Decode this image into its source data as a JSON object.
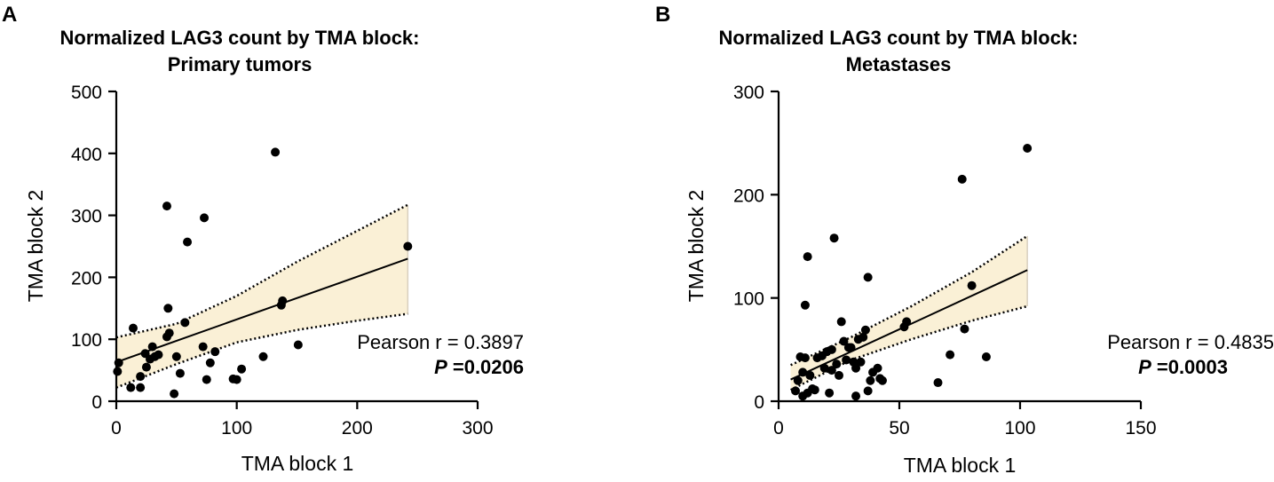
{
  "figure": {
    "panels": [
      "A",
      "B"
    ]
  },
  "chart_data": [
    {
      "type": "scatter",
      "panel": "A",
      "title": [
        "Normalized LAG3 count by TMA block:",
        "Primary tumors"
      ],
      "xlabel": "TMA block 1",
      "ylabel": "TMA block 2",
      "xlim": [
        0,
        300
      ],
      "ylim": [
        0,
        500
      ],
      "xticks": [
        "0",
        "100",
        "200",
        "300"
      ],
      "yticks": [
        "0",
        "100",
        "200",
        "300",
        "400",
        "500"
      ],
      "points": [
        [
          1,
          48
        ],
        [
          2,
          62
        ],
        [
          12,
          22
        ],
        [
          14,
          118
        ],
        [
          20,
          22
        ],
        [
          20,
          40
        ],
        [
          24,
          77
        ],
        [
          25,
          55
        ],
        [
          28,
          68
        ],
        [
          30,
          88
        ],
        [
          32,
          72
        ],
        [
          35,
          75
        ],
        [
          42,
          315
        ],
        [
          42,
          104
        ],
        [
          43,
          150
        ],
        [
          44,
          110
        ],
        [
          48,
          12
        ],
        [
          50,
          72
        ],
        [
          53,
          45
        ],
        [
          57,
          127
        ],
        [
          59,
          257
        ],
        [
          72,
          88
        ],
        [
          73,
          296
        ],
        [
          75,
          35
        ],
        [
          78,
          62
        ],
        [
          82,
          80
        ],
        [
          97,
          36
        ],
        [
          100,
          35
        ],
        [
          104,
          52
        ],
        [
          122,
          72
        ],
        [
          132,
          402
        ],
        [
          137,
          155
        ],
        [
          138,
          162
        ],
        [
          151,
          91
        ],
        [
          242,
          250
        ]
      ],
      "regression": {
        "x": [
          0,
          242
        ],
        "y": [
          63,
          230
        ]
      },
      "ci_upper": [
        [
          0,
          103
        ],
        [
          50,
          125
        ],
        [
          100,
          170
        ],
        [
          150,
          225
        ],
        [
          200,
          275
        ],
        [
          242,
          317
        ]
      ],
      "ci_lower": [
        [
          0,
          22
        ],
        [
          50,
          60
        ],
        [
          100,
          95
        ],
        [
          150,
          115
        ],
        [
          200,
          130
        ],
        [
          242,
          141
        ]
      ],
      "stats": {
        "r_text": "Pearson r = 0.3897",
        "p_label": "P",
        "p_value": " =0.0206"
      },
      "colors": {
        "band": "#faf0d6",
        "points": "#000000"
      }
    },
    {
      "type": "scatter",
      "panel": "B",
      "title": [
        "Normalized LAG3 count by TMA block:",
        "Metastases"
      ],
      "xlabel": "TMA block 1",
      "ylabel": "TMA block 2",
      "xlim": [
        0,
        150
      ],
      "ylim": [
        0,
        300
      ],
      "xticks": [
        "0",
        "50",
        "100",
        "150"
      ],
      "yticks": [
        "0",
        "100",
        "200",
        "300"
      ],
      "points": [
        [
          7,
          10
        ],
        [
          8,
          20
        ],
        [
          9,
          43
        ],
        [
          10,
          5
        ],
        [
          10,
          28
        ],
        [
          11,
          93
        ],
        [
          11,
          42
        ],
        [
          12,
          140
        ],
        [
          12,
          8
        ],
        [
          13,
          25
        ],
        [
          14,
          12
        ],
        [
          15,
          11
        ],
        [
          16,
          42
        ],
        [
          18,
          44
        ],
        [
          19,
          32
        ],
        [
          20,
          48
        ],
        [
          21,
          8
        ],
        [
          22,
          30
        ],
        [
          22,
          50
        ],
        [
          23,
          158
        ],
        [
          24,
          36
        ],
        [
          25,
          25
        ],
        [
          26,
          77
        ],
        [
          27,
          58
        ],
        [
          28,
          40
        ],
        [
          29,
          52
        ],
        [
          30,
          52
        ],
        [
          31,
          38
        ],
        [
          32,
          5
        ],
        [
          32,
          32
        ],
        [
          33,
          60
        ],
        [
          34,
          38
        ],
        [
          35,
          62
        ],
        [
          36,
          69
        ],
        [
          37,
          120
        ],
        [
          37,
          10
        ],
        [
          38,
          20
        ],
        [
          39,
          28
        ],
        [
          41,
          32
        ],
        [
          42,
          22
        ],
        [
          43,
          20
        ],
        [
          52,
          72
        ],
        [
          53,
          77
        ],
        [
          66,
          18
        ],
        [
          71,
          45
        ],
        [
          76,
          215
        ],
        [
          77,
          70
        ],
        [
          80,
          112
        ],
        [
          86,
          43
        ],
        [
          103,
          245
        ]
      ],
      "regression": {
        "x": [
          5,
          103
        ],
        "y": [
          21,
          127
        ]
      },
      "ci_upper": [
        [
          5,
          35
        ],
        [
          30,
          62
        ],
        [
          55,
          92
        ],
        [
          80,
          125
        ],
        [
          103,
          160
        ]
      ],
      "ci_lower": [
        [
          5,
          11
        ],
        [
          30,
          40
        ],
        [
          55,
          60
        ],
        [
          80,
          78
        ],
        [
          103,
          92
        ]
      ],
      "stats": {
        "r_text": "Pearson r = 0.4835",
        "p_label": "P",
        "p_value": " =0.0003"
      },
      "colors": {
        "band": "#faf0d6",
        "points": "#000000"
      }
    }
  ]
}
